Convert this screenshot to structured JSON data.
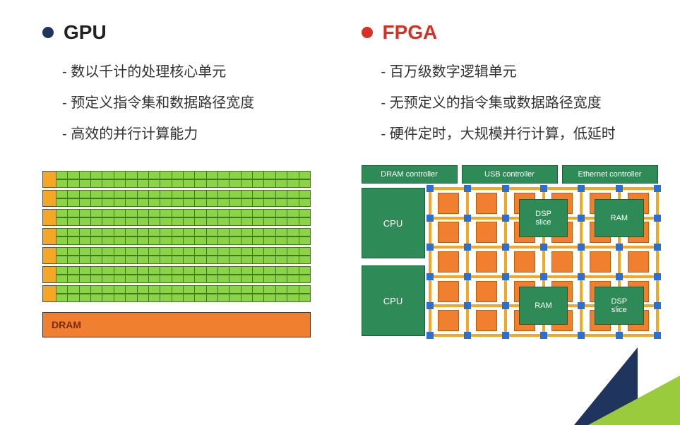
{
  "colors": {
    "bullet_gpu": "#1f355e",
    "bullet_fpga": "#d93025",
    "title_gpu": "#222222",
    "title_fpga": "#d93025",
    "text": "#333333",
    "gpu_core": "#8bd448",
    "gpu_core_border": "#3f7a1a",
    "gpu_cache": "#f5a623",
    "gpu_dram_fill": "#f08030",
    "gpu_dram_text": "#7a2a00",
    "fpga_block": "#2e8b57",
    "fpga_block_border": "#126437",
    "fpga_clb": "#f08030",
    "fpga_switch": "#2a6fd6",
    "fpga_wire": "#f5a623",
    "tri_dark": "#1f355e",
    "tri_green": "#9acb3c"
  },
  "gpu": {
    "title": "GPU",
    "items": [
      "数以千计的处理核心单元",
      "预定义指令集和数据路径宽度",
      "高效的并行计算能力"
    ],
    "diagram": {
      "double_rows": 7,
      "cores_per_row": 22,
      "dram_label": "DRAM"
    }
  },
  "fpga": {
    "title": "FPGA",
    "items": [
      "百万级数字逻辑单元",
      "无预定义的指令集或数据路径宽度",
      "硬件定时，大规模并行计算，低延时"
    ],
    "diagram": {
      "controllers": [
        "DRAM controller",
        "USB controller",
        "Ethernet controller"
      ],
      "cpu_label": "CPU",
      "fabric": {
        "cols": 6,
        "rows": 5,
        "hard_blocks": [
          {
            "label": "DSP\nslice",
            "col": 2.5,
            "row": 0.5,
            "w": 1.3,
            "h": 1.3
          },
          {
            "label": "RAM",
            "col": 4.5,
            "row": 0.5,
            "w": 1.3,
            "h": 1.3
          },
          {
            "label": "RAM",
            "col": 2.5,
            "row": 3.5,
            "w": 1.3,
            "h": 1.3
          },
          {
            "label": "DSP\nslice",
            "col": 4.5,
            "row": 3.5,
            "w": 1.3,
            "h": 1.3
          }
        ]
      }
    }
  }
}
